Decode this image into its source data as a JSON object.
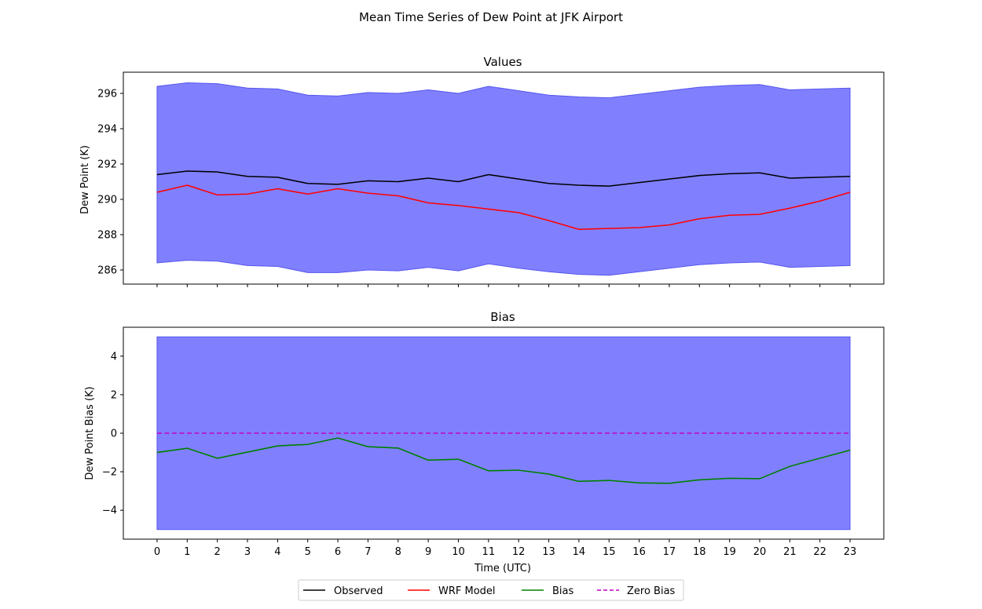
{
  "chart_data": {
    "type": "line",
    "title": "Mean Time Series of Dew Point at JFK Airport",
    "x": [
      0,
      1,
      2,
      3,
      4,
      5,
      6,
      7,
      8,
      9,
      10,
      11,
      12,
      13,
      14,
      15,
      16,
      17,
      18,
      19,
      20,
      21,
      22,
      23
    ],
    "xlabel": "Time (UTC)",
    "xticks": [
      "0",
      "1",
      "2",
      "3",
      "4",
      "5",
      "6",
      "7",
      "8",
      "9",
      "10",
      "11",
      "12",
      "13",
      "14",
      "15",
      "16",
      "17",
      "18",
      "19",
      "20",
      "21",
      "22",
      "23"
    ],
    "legend": {
      "placement": "bottom-center",
      "entries": [
        {
          "key": "observed",
          "label": "Observed",
          "color": "#000000",
          "style": "solid"
        },
        {
          "key": "wrf",
          "label": "WRF Model",
          "color": "#ff0000",
          "style": "solid"
        },
        {
          "key": "bias",
          "label": "Bias",
          "color": "#008000",
          "style": "solid"
        },
        {
          "key": "zero",
          "label": "Zero Bias",
          "color": "#bf00bf",
          "style": "dashed"
        }
      ]
    },
    "panels": [
      {
        "title": "Values",
        "ylabel": "Dew Point (K)",
        "ylim": [
          285.2,
          297.2
        ],
        "yticks": [
          286,
          288,
          290,
          292,
          294,
          296
        ],
        "band": {
          "color": "#8080ff",
          "lower": [
            286.4,
            286.55,
            286.5,
            286.25,
            286.2,
            285.85,
            285.85,
            286.0,
            285.95,
            286.15,
            285.95,
            286.35,
            286.1,
            285.9,
            285.75,
            285.7,
            285.9,
            286.1,
            286.3,
            286.4,
            286.45,
            286.15,
            286.2,
            286.25
          ],
          "upper": [
            296.4,
            296.6,
            296.55,
            296.3,
            296.25,
            295.9,
            295.85,
            296.05,
            296.0,
            296.2,
            296.0,
            296.4,
            296.15,
            295.9,
            295.8,
            295.75,
            295.95,
            296.15,
            296.35,
            296.45,
            296.5,
            296.2,
            296.25,
            296.3
          ]
        },
        "series": [
          {
            "name": "Observed",
            "color": "#000000",
            "style": "solid",
            "values": [
              291.4,
              291.6,
              291.55,
              291.3,
              291.25,
              290.9,
              290.85,
              291.05,
              291.0,
              291.2,
              291.0,
              291.4,
              291.15,
              290.9,
              290.8,
              290.75,
              290.95,
              291.15,
              291.35,
              291.45,
              291.5,
              291.2,
              291.25,
              291.3
            ]
          },
          {
            "name": "WRF Model",
            "color": "#ff0000",
            "style": "solid",
            "values": [
              290.4,
              290.8,
              290.25,
              290.3,
              290.6,
              290.3,
              290.6,
              290.35,
              290.2,
              289.8,
              289.65,
              289.45,
              289.25,
              288.8,
              288.3,
              288.35,
              288.4,
              288.55,
              288.9,
              289.1,
              289.15,
              289.5,
              289.9,
              290.4
            ]
          }
        ]
      },
      {
        "title": "Bias",
        "ylabel": "Dew Point Bias (K)",
        "ylim": [
          -5.5,
          5.5
        ],
        "yticks": [
          -4,
          -2,
          0,
          2,
          4
        ],
        "band": {
          "color": "#8080ff",
          "lower": -5,
          "upper": 5
        },
        "series": [
          {
            "name": "Bias",
            "color": "#008000",
            "style": "solid",
            "values": [
              -1.0,
              -0.78,
              -1.3,
              -0.98,
              -0.66,
              -0.58,
              -0.25,
              -0.7,
              -0.77,
              -1.4,
              -1.35,
              -1.95,
              -1.92,
              -2.12,
              -2.5,
              -2.45,
              -2.58,
              -2.6,
              -2.42,
              -2.34,
              -2.36,
              -1.72,
              -1.3,
              -0.88
            ]
          },
          {
            "name": "Zero Bias",
            "color": "#bf00bf",
            "style": "dashed",
            "values": [
              0,
              0,
              0,
              0,
              0,
              0,
              0,
              0,
              0,
              0,
              0,
              0,
              0,
              0,
              0,
              0,
              0,
              0,
              0,
              0,
              0,
              0,
              0,
              0
            ]
          }
        ]
      }
    ]
  }
}
